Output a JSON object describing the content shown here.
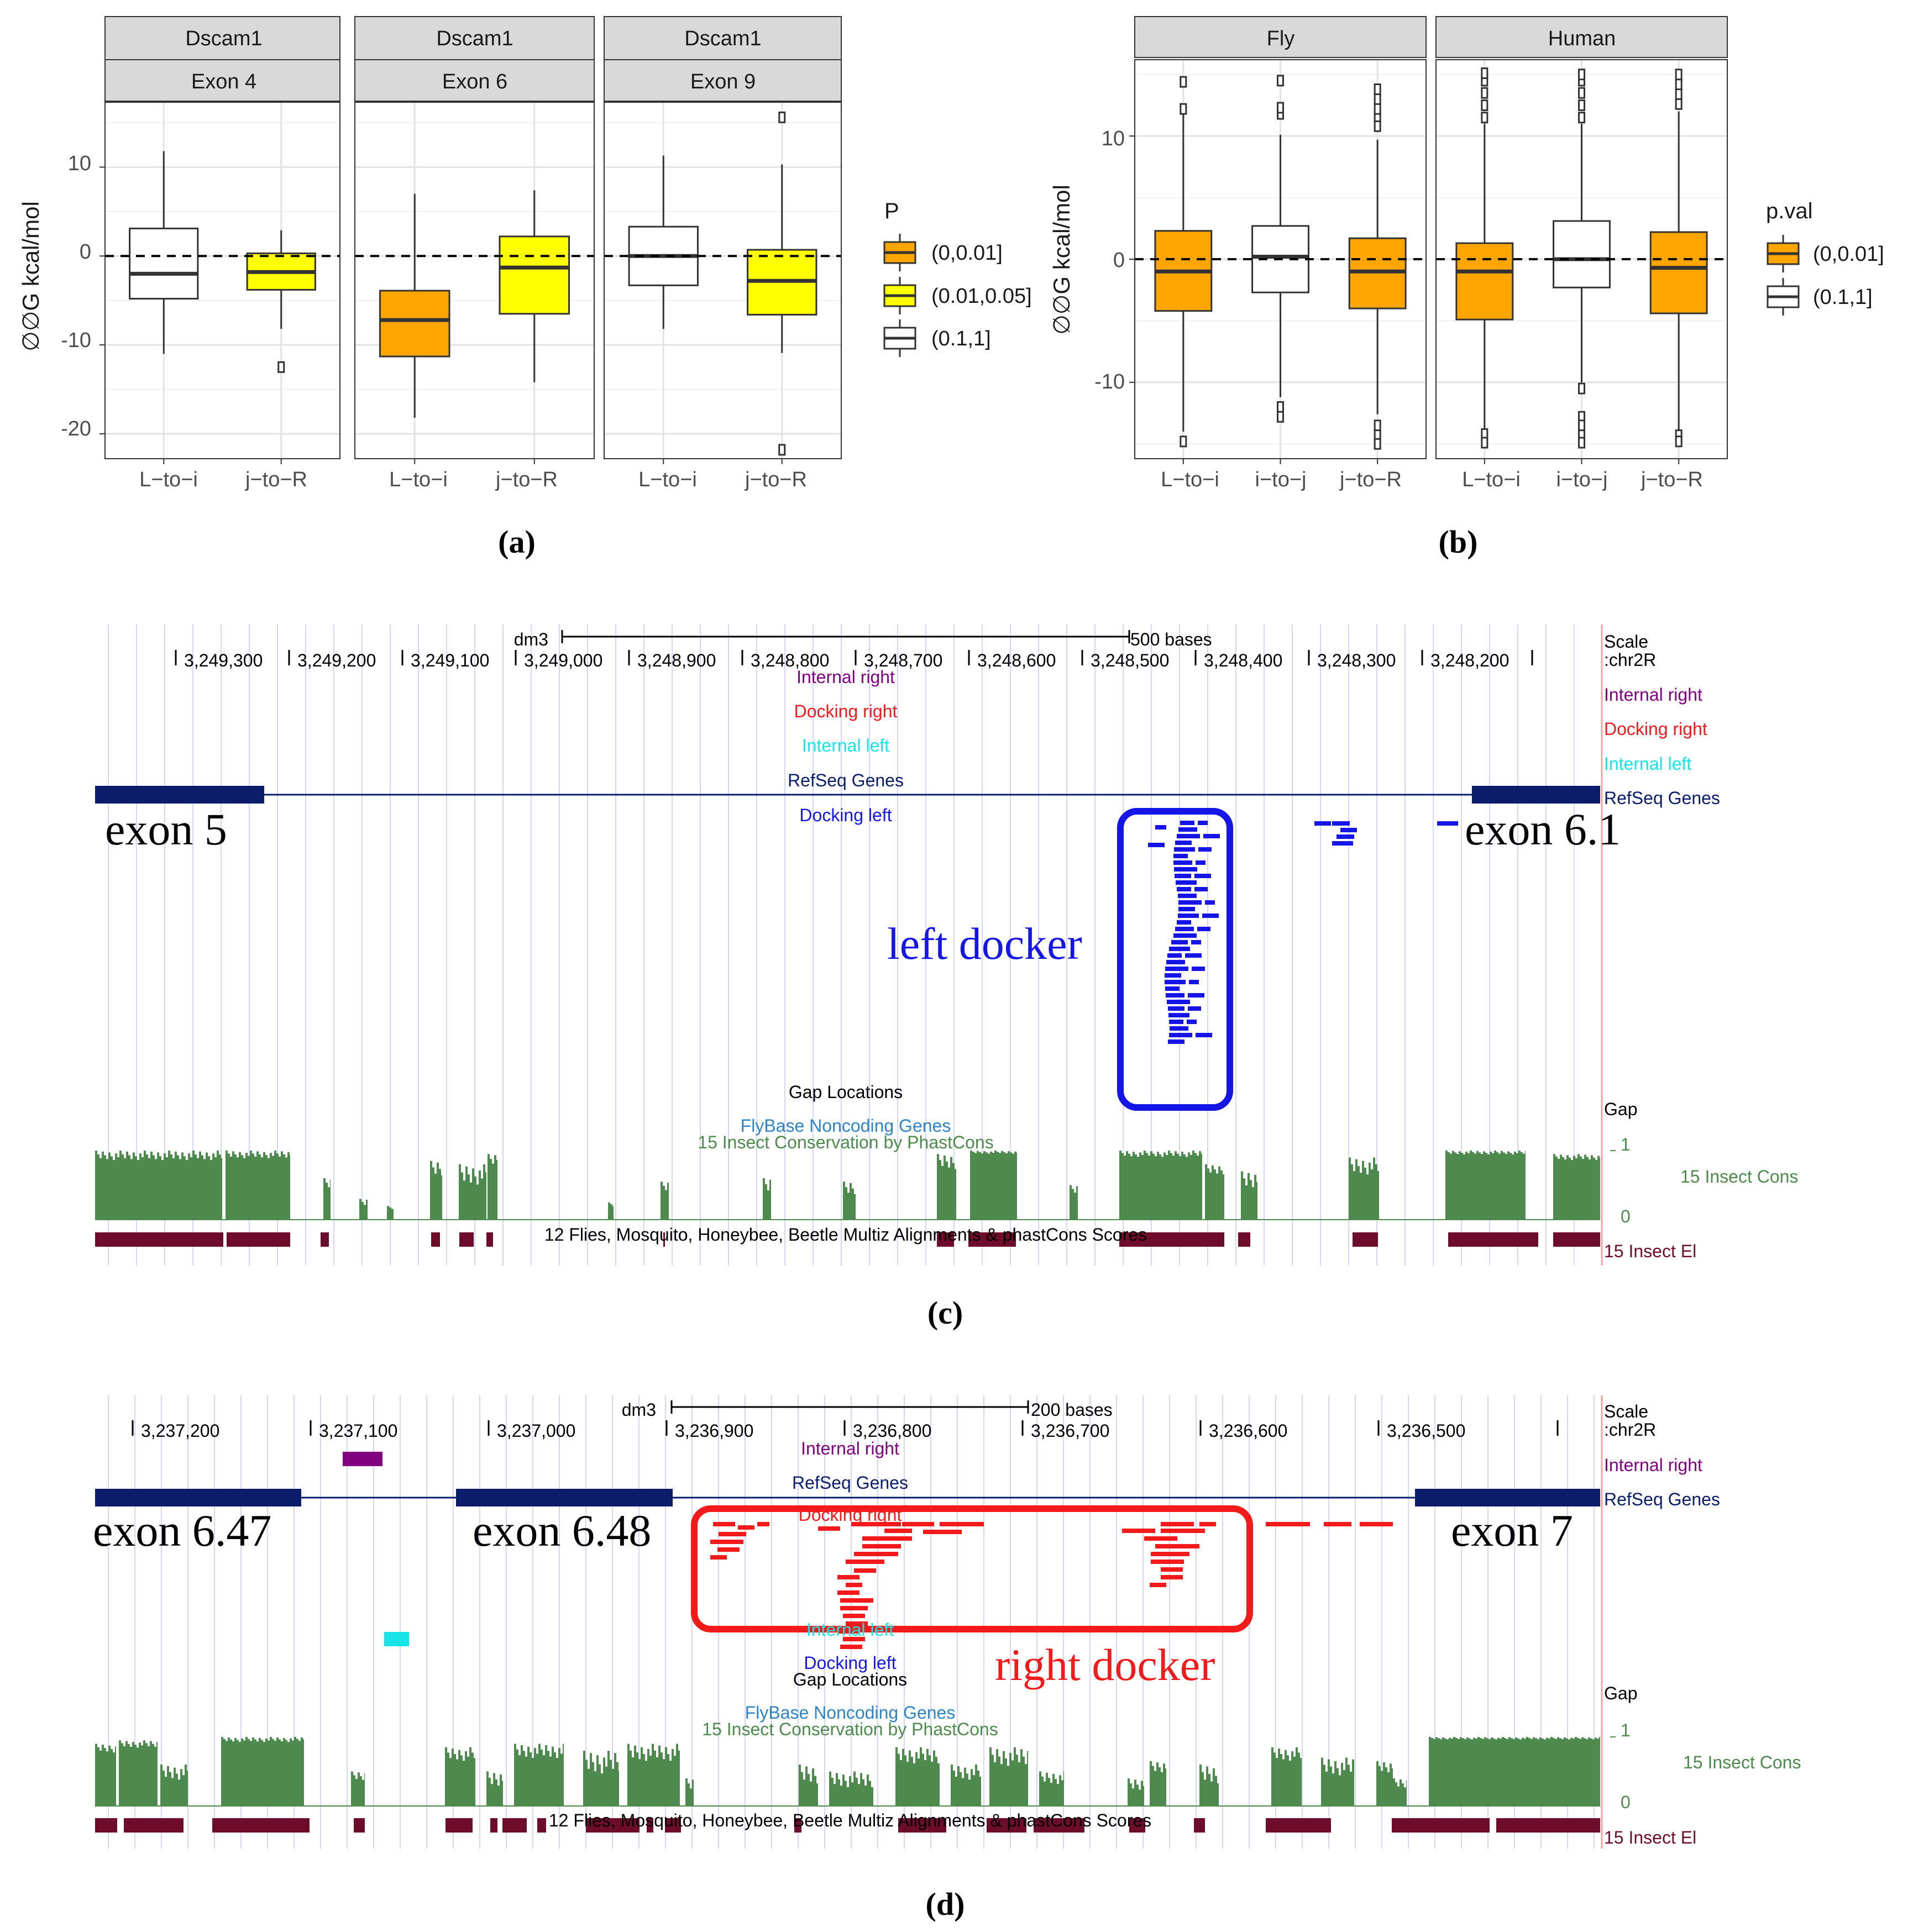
{
  "chart_data": [
    {
      "id": "a",
      "type": "boxplot",
      "label": "(a)",
      "ylabel": "∅∅G kcal/mol",
      "ylim": [
        -22.8,
        17.3
      ],
      "yticks": [
        10,
        0,
        -10,
        -20
      ],
      "legend": {
        "title": "P",
        "placement": "right",
        "entries": [
          {
            "label": "(0,0.01]",
            "color": "#FFA500"
          },
          {
            "label": "(0.01,0.05]",
            "color": "#FFFF00"
          },
          {
            "label": "(0.1,1]",
            "color": "#FFFFFF"
          }
        ]
      },
      "panels": [
        {
          "strips": [
            "Dscam1",
            "Exon 4"
          ],
          "categories": [
            "L−to−i",
            "j−to−R"
          ],
          "boxes": [
            {
              "cat": 0,
              "fill": "#FFFFFF",
              "q1": -4.8,
              "median": -2,
              "q3": 3.1,
              "whisker_low": -11,
              "whisker_high": 11.8,
              "outliers": []
            },
            {
              "cat": 1,
              "fill": "#FFFF00",
              "q1": -3.8,
              "median": -1.8,
              "q3": 0.3,
              "whisker_low": -8.2,
              "whisker_high": 2.9,
              "outliers": [
                -12.5
              ]
            }
          ]
        },
        {
          "strips": [
            "Dscam1",
            "Exon 6"
          ],
          "categories": [
            "L−to−i",
            "j−to−R"
          ],
          "boxes": [
            {
              "cat": 0,
              "fill": "#FFA500",
              "q1": -11.3,
              "median": -7.2,
              "q3": -3.9,
              "whisker_low": -18.2,
              "whisker_high": 7,
              "outliers": []
            },
            {
              "cat": 1,
              "fill": "#FFFF00",
              "q1": -6.5,
              "median": -1.3,
              "q3": 2.2,
              "whisker_low": -14.2,
              "whisker_high": 7.4,
              "outliers": []
            }
          ]
        },
        {
          "strips": [
            "Dscam1",
            "Exon 9"
          ],
          "categories": [
            "L−to−i",
            "j−to−R"
          ],
          "boxes": [
            {
              "cat": 0,
              "fill": "#FFFFFF",
              "q1": -3.3,
              "median": 0,
              "q3": 3.3,
              "whisker_low": -8.2,
              "whisker_high": 11.3,
              "outliers": []
            },
            {
              "cat": 1,
              "fill": "#FFFF00",
              "q1": -6.6,
              "median": -2.8,
              "q3": 0.7,
              "whisker_low": -10.9,
              "whisker_high": 10.3,
              "outliers": [
                15.6,
                -21.8
              ]
            }
          ]
        }
      ]
    },
    {
      "id": "b",
      "type": "boxplot",
      "label": "(b)",
      "ylabel": "∅∅G kcal/mol",
      "ylim": [
        -16.2,
        16.2
      ],
      "yticks": [
        10,
        0,
        -10
      ],
      "legend": {
        "title": "p.val",
        "placement": "right",
        "entries": [
          {
            "label": "(0,0.01]",
            "color": "#FFA500"
          },
          {
            "label": "(0.1,1]",
            "color": "#FFFFFF"
          }
        ]
      },
      "panels": [
        {
          "strips": [
            "Fly"
          ],
          "categories": [
            "L−to−i",
            "i−to−j",
            "j−to−R"
          ],
          "boxes": [
            {
              "cat": 0,
              "fill": "#FFA500",
              "q1": -4.2,
              "median": -1,
              "q3": 2.3,
              "whisker_low": -14,
              "whisker_high": 11.8,
              "outliers": [
                12.2,
                14.4,
                -14.8
              ]
            },
            {
              "cat": 1,
              "fill": "#FFFFFF",
              "q1": -2.7,
              "median": 0.2,
              "q3": 2.7,
              "whisker_low": -11.2,
              "whisker_high": 10.1,
              "outliers": [
                11.8,
                12.3,
                14.5,
                -12,
                -12.8
              ]
            },
            {
              "cat": 2,
              "fill": "#FFA500",
              "q1": -4,
              "median": -1,
              "q3": 1.7,
              "whisker_low": -12.6,
              "whisker_high": 9.7,
              "outliers": [
                10.8,
                11.6,
                12.2,
                13,
                13.8,
                -13.5,
                -14.3,
                -15
              ]
            }
          ]
        },
        {
          "strips": [
            "Human"
          ],
          "categories": [
            "L−to−i",
            "i−to−j",
            "j−to−R"
          ],
          "boxes": [
            {
              "cat": 0,
              "fill": "#FFA500",
              "q1": -4.9,
              "median": -1,
              "q3": 1.3,
              "whisker_low": -14,
              "whisker_high": 11,
              "outliers": [
                11.5,
                12.5,
                13.5,
                14.5,
                15.1,
                -14.2,
                -14.9
              ]
            },
            {
              "cat": 1,
              "fill": "#FFFFFF",
              "q1": -2.3,
              "median": 0,
              "q3": 3.1,
              "whisker_low": -10,
              "whisker_high": 11,
              "outliers": [
                11.5,
                12.5,
                13.5,
                14.5,
                15,
                -10.5,
                -12.8,
                -13.5,
                -14.3,
                -14.9
              ]
            },
            {
              "cat": 2,
              "fill": "#FFA500",
              "q1": -4.4,
              "median": -0.7,
              "q3": 2.2,
              "whisker_low": -14,
              "whisker_high": 12,
              "outliers": [
                12.6,
                13.4,
                14.2,
                15,
                -14.3,
                -14.8
              ]
            }
          ]
        }
      ]
    },
    {
      "id": "c",
      "type": "genome-browser",
      "label": "(c)",
      "assembly": "dm3",
      "scale_bar": "500 bases",
      "coordinates": [
        "3,249,300",
        "3,249,200",
        "3,249,100",
        "3,249,000",
        "3,248,900",
        "3,248,800",
        "3,248,700",
        "3,248,600",
        "3,248,500",
        "3,248,400",
        "3,248,300",
        "3,248,200"
      ],
      "right_labels": [
        "Scale",
        ":chr2R",
        "Internal right",
        "Docking right",
        "Internal left",
        "RefSeq Genes",
        "Gap",
        "1",
        "15 Insect Cons",
        "0",
        "15 Insect El"
      ],
      "center_labels": [
        "Internal right",
        "Docking right",
        "Internal left",
        "RefSeq Genes",
        "Docking left",
        "Gap Locations",
        "FlyBase Noncoding Genes",
        "15 Insect Conservation by PhastCons",
        "12 Flies, Mosquito, Honeybee, Beetle Multiz Alignments & phastCons Scores"
      ],
      "annotations": [
        "exon 5",
        "exon 6.1",
        "left docker"
      ]
    },
    {
      "id": "d",
      "type": "genome-browser",
      "label": "(d)",
      "assembly": "dm3",
      "scale_bar": "200 bases",
      "coordinates": [
        "3,237,200",
        "3,237,100",
        "3,237,000",
        "3,236,900",
        "3,236,800",
        "3,236,700",
        "3,236,600",
        "3,236,500"
      ],
      "right_labels": [
        "Scale",
        ":chr2R",
        "Internal right",
        "RefSeq Genes",
        "Gap",
        "1",
        "15 Insect Cons",
        "0",
        "15 Insect El"
      ],
      "center_labels": [
        "Internal right",
        "RefSeq Genes",
        "Docking right",
        "Internal left",
        "Docking left",
        "Gap Locations",
        "FlyBase Noncoding Genes",
        "15 Insect Conservation by PhastCons",
        "12 Flies, Mosquito, Honeybee, Beetle Multiz Alignments & phastCons Scores"
      ],
      "annotations": [
        "exon 6.47",
        "exon 6.48",
        "exon 7",
        "right docker"
      ]
    }
  ],
  "colors": {
    "orange": "#FFA500",
    "yellow": "#FFFF00",
    "strip": "#D9D9D9",
    "navy": "#0B1C6B",
    "blue": "#1515E8",
    "red": "#F21A1A",
    "purple": "#800080",
    "cyan": "#17E5E5",
    "green": "#4E8A4E",
    "maroon": "#6E0C2C"
  }
}
